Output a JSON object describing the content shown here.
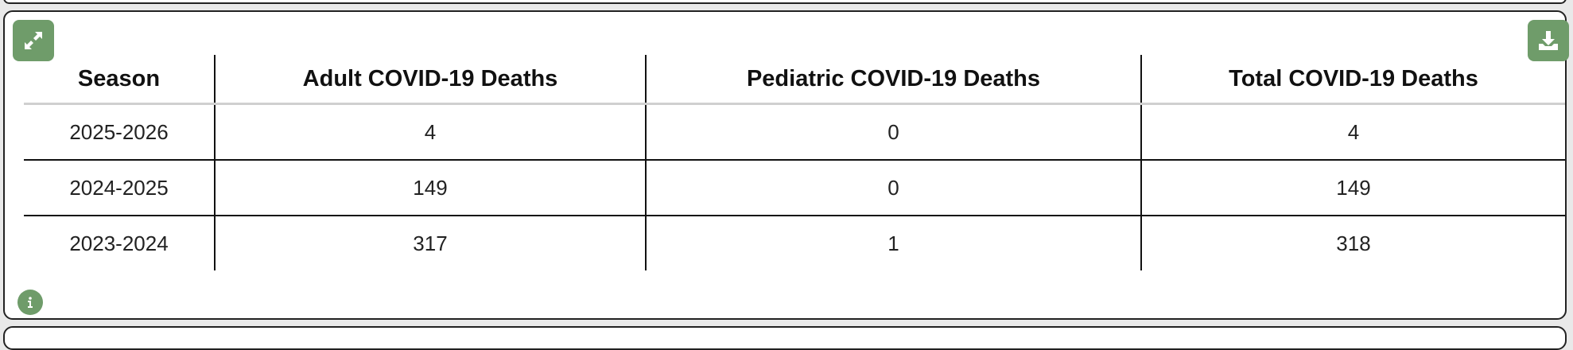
{
  "table": {
    "columns": [
      "Season",
      "Adult COVID-19 Deaths",
      "Pediatric COVID-19 Deaths",
      "Total COVID-19 Deaths"
    ],
    "rows": [
      [
        "2025-2026",
        "4",
        "0",
        "4"
      ],
      [
        "2024-2025",
        "149",
        "0",
        "149"
      ],
      [
        "2023-2024",
        "317",
        "1",
        "318"
      ]
    ]
  }
}
